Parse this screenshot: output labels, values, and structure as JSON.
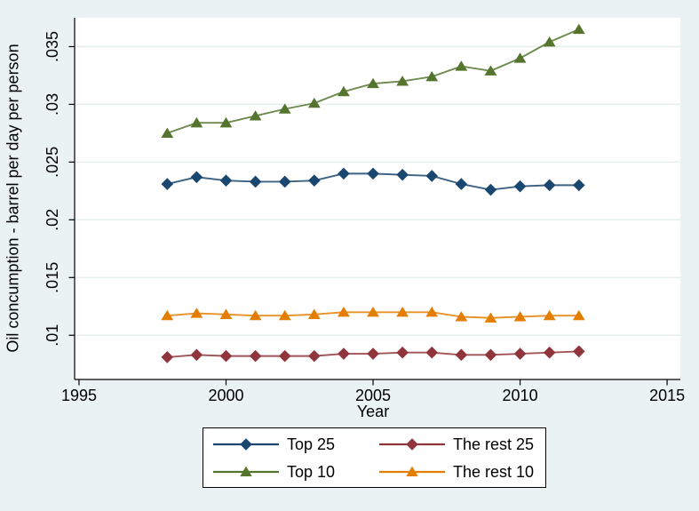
{
  "window": {
    "background_color": "#eaf2f3",
    "plot_background_color": "#ffffff",
    "gridline_color": "#e7eeee",
    "axis_color": "#000000",
    "text_color": "#000000"
  },
  "chart_data": {
    "type": "line",
    "title": "",
    "xlabel": "Year",
    "ylabel": "Oil concumption - barrel per day per person",
    "grid": true,
    "legend_position": "bottom-center",
    "xlim": [
      1994.85,
      2015.45
    ],
    "ylim": [
      0.00617,
      0.0375
    ],
    "x_ticks": [
      {
        "label": "1995",
        "value": 1995
      },
      {
        "label": "2000",
        "value": 2000
      },
      {
        "label": "2005",
        "value": 2005
      },
      {
        "label": "2010",
        "value": 2010
      },
      {
        "label": "2015",
        "value": 2015
      }
    ],
    "y_ticks": [
      {
        "label": ".01",
        "value": 0.01
      },
      {
        "label": ".015",
        "value": 0.015
      },
      {
        "label": ".02",
        "value": 0.02
      },
      {
        "label": ".025",
        "value": 0.025
      },
      {
        "label": ".03",
        "value": 0.03
      },
      {
        "label": ".035",
        "value": 0.035
      }
    ],
    "x": [
      1998,
      1999,
      2000,
      2001,
      2002,
      2003,
      2004,
      2005,
      2006,
      2007,
      2008,
      2009,
      2010,
      2011,
      2012
    ],
    "series": [
      {
        "name": "Top 25",
        "color": "#1a476f",
        "marker": "diamond",
        "values": [
          0.0231,
          0.0237,
          0.0234,
          0.0233,
          0.0233,
          0.0234,
          0.024,
          0.024,
          0.0239,
          0.0238,
          0.0231,
          0.0226,
          0.0229,
          0.023,
          0.023
        ]
      },
      {
        "name": "Top 10",
        "color": "#55752f",
        "marker": "triangle",
        "values": [
          0.0275,
          0.0284,
          0.0284,
          0.029,
          0.0296,
          0.0301,
          0.0311,
          0.0318,
          0.032,
          0.0324,
          0.0333,
          0.0329,
          0.034,
          0.0354,
          0.0365
        ]
      },
      {
        "name": "The rest 25",
        "color": "#90353b",
        "marker": "diamond",
        "values": [
          0.0081,
          0.0083,
          0.0082,
          0.0082,
          0.0082,
          0.0082,
          0.0084,
          0.0084,
          0.0085,
          0.0085,
          0.0083,
          0.0083,
          0.0084,
          0.0085,
          0.0086
        ]
      },
      {
        "name": "The rest 10",
        "color": "#e37e00",
        "marker": "triangle",
        "values": [
          0.0117,
          0.0119,
          0.0118,
          0.0117,
          0.0117,
          0.0118,
          0.012,
          0.012,
          0.012,
          0.012,
          0.0116,
          0.0115,
          0.0116,
          0.0117,
          0.0117
        ]
      }
    ]
  }
}
